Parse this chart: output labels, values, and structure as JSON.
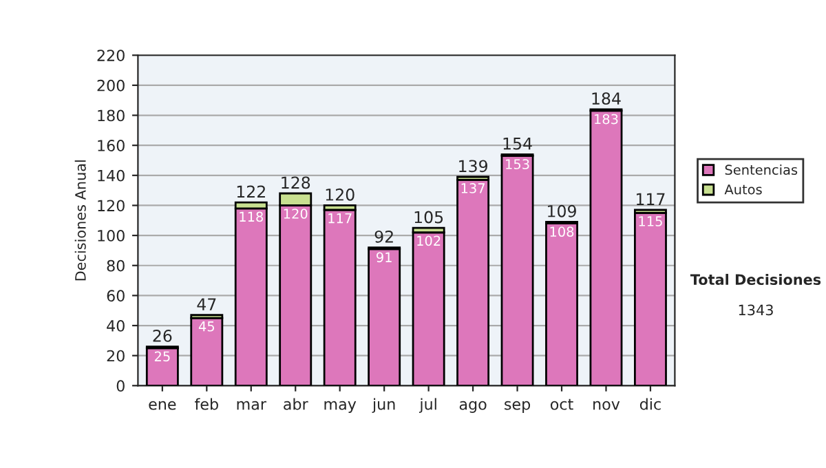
{
  "chart_data": {
    "type": "bar",
    "stacked": true,
    "ylabel": "Decisiones Anual",
    "categories": [
      "ene",
      "feb",
      "mar",
      "abr",
      "may",
      "jun",
      "jul",
      "ago",
      "sep",
      "oct",
      "nov",
      "dic"
    ],
    "series": [
      {
        "name": "Sentencias",
        "color": "#dd77bb",
        "values": [
          25,
          45,
          118,
          120,
          117,
          91,
          102,
          137,
          153,
          108,
          183,
          115
        ],
        "value_labels": [
          "25",
          "45",
          "118",
          "120",
          "117",
          "91",
          "102",
          "137",
          "153",
          "108",
          "183",
          "115"
        ]
      },
      {
        "name": "Autos",
        "color": "#c8e090",
        "values": [
          1,
          2,
          4,
          8,
          3,
          1,
          3,
          2,
          1,
          1,
          1,
          2
        ]
      }
    ],
    "totals": [
      "26",
      "47",
      "122",
      "128",
      "120",
      "92",
      "105",
      "139",
      "154",
      "109",
      "184",
      "117"
    ],
    "ylim": [
      0,
      220
    ],
    "yticks": [
      0,
      20,
      40,
      60,
      80,
      100,
      120,
      140,
      160,
      180,
      200,
      220
    ],
    "grid": "y",
    "legend": "right",
    "annotations": [
      "Total Decisiones",
      "1343"
    ]
  }
}
